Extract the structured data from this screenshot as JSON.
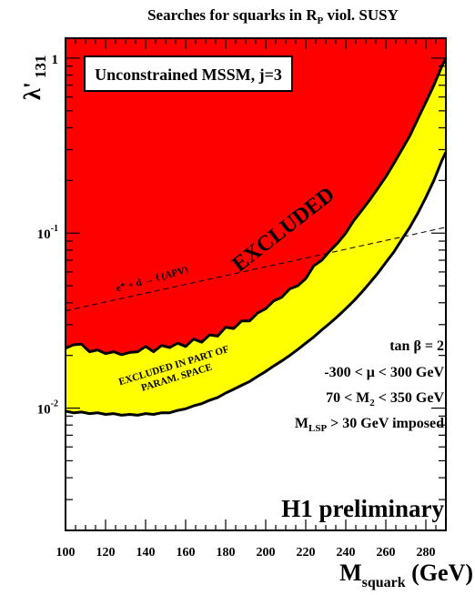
{
  "chart_data": {
    "type": "area",
    "title": "Searches for squarks in R",
    "title_sub": "P",
    "title_rest": " viol. SUSY",
    "ylabel": "λ'",
    "ylabel_sub": "131",
    "xlabel": "M",
    "xlabel_sub": "squark",
    "xlabel_unit": " (GeV)",
    "y_scale": "log",
    "xlim": [
      100,
      290
    ],
    "ylim": [
      0.002,
      1.3
    ],
    "x_ticks": [
      "100",
      "120",
      "140",
      "160",
      "180",
      "200",
      "220",
      "240",
      "260",
      "280"
    ],
    "y_ticks": [
      {
        "base": "1",
        "exp": ""
      },
      {
        "base": "10",
        "exp": "-1"
      },
      {
        "base": "10",
        "exp": "-2"
      }
    ],
    "regions": [
      {
        "name": "EXCLUDED",
        "color": "#ff0000",
        "boundary_x": [
          100,
          104,
          108,
          112,
          116,
          120,
          124,
          128,
          132,
          136,
          140,
          144,
          148,
          152,
          156,
          160,
          164,
          168,
          172,
          176,
          180,
          184,
          188,
          192,
          196,
          200,
          204,
          208,
          212,
          216,
          220,
          224,
          228,
          232,
          236,
          240,
          244,
          248,
          252,
          256,
          260,
          264,
          268,
          272,
          276,
          280,
          284,
          288,
          290
        ],
        "boundary_y": [
          0.022,
          0.023,
          0.0232,
          0.021,
          0.0215,
          0.0205,
          0.021,
          0.0202,
          0.0208,
          0.021,
          0.0225,
          0.021,
          0.0228,
          0.0222,
          0.0235,
          0.0225,
          0.0248,
          0.0238,
          0.0262,
          0.0258,
          0.029,
          0.0285,
          0.0315,
          0.0315,
          0.035,
          0.037,
          0.041,
          0.043,
          0.048,
          0.05,
          0.055,
          0.065,
          0.07,
          0.079,
          0.088,
          0.1,
          0.118,
          0.135,
          0.155,
          0.18,
          0.21,
          0.25,
          0.3,
          0.36,
          0.45,
          0.56,
          0.7,
          0.9,
          1.0
        ]
      },
      {
        "name": "EXCLUDED IN PART OF PARAM. SPACE",
        "color": "#ffff00",
        "boundary_x": [
          100,
          104,
          108,
          112,
          116,
          120,
          124,
          128,
          132,
          136,
          140,
          144,
          148,
          152,
          156,
          160,
          164,
          168,
          172,
          176,
          180,
          184,
          188,
          192,
          196,
          200,
          204,
          208,
          212,
          216,
          220,
          224,
          228,
          232,
          236,
          240,
          244,
          248,
          252,
          256,
          260,
          264,
          268,
          272,
          276,
          280,
          284,
          288,
          290
        ],
        "boundary_y": [
          0.0096,
          0.0094,
          0.0095,
          0.0093,
          0.0094,
          0.0092,
          0.0093,
          0.0091,
          0.0092,
          0.0091,
          0.0093,
          0.0092,
          0.0094,
          0.0094,
          0.0097,
          0.0099,
          0.0103,
          0.0106,
          0.0111,
          0.0115,
          0.0122,
          0.0128,
          0.0135,
          0.0142,
          0.0152,
          0.0162,
          0.0174,
          0.0186,
          0.02,
          0.0216,
          0.0235,
          0.0255,
          0.028,
          0.0305,
          0.0335,
          0.037,
          0.041,
          0.046,
          0.052,
          0.059,
          0.068,
          0.078,
          0.092,
          0.108,
          0.13,
          0.16,
          0.2,
          0.26,
          0.29
        ]
      }
    ],
    "apv_line": {
      "label": "e⁺ + d → t̄ (APV)",
      "x": [
        100,
        290
      ],
      "y": [
        0.036,
        0.108
      ],
      "style": "dashed"
    },
    "annotations": {
      "excluded": "EXCLUDED",
      "partial_line1": "EXCLUDED IN PART OF",
      "partial_line2": "PARAM. SPACE",
      "box_label": "Unconstrained MSSM, j=3",
      "params": [
        {
          "text": "tan β = 2",
          "sub": "",
          "rest": ""
        },
        {
          "text": "-300 < μ < 300 GeV",
          "sub": "",
          "rest": ""
        },
        {
          "text": "70 < M",
          "sub": "2",
          "rest": " < 350 GeV"
        },
        {
          "text": "M",
          "sub": "LSP",
          "rest": " > 30 GeV imposed"
        }
      ],
      "preliminary": "H1 preliminary"
    }
  }
}
